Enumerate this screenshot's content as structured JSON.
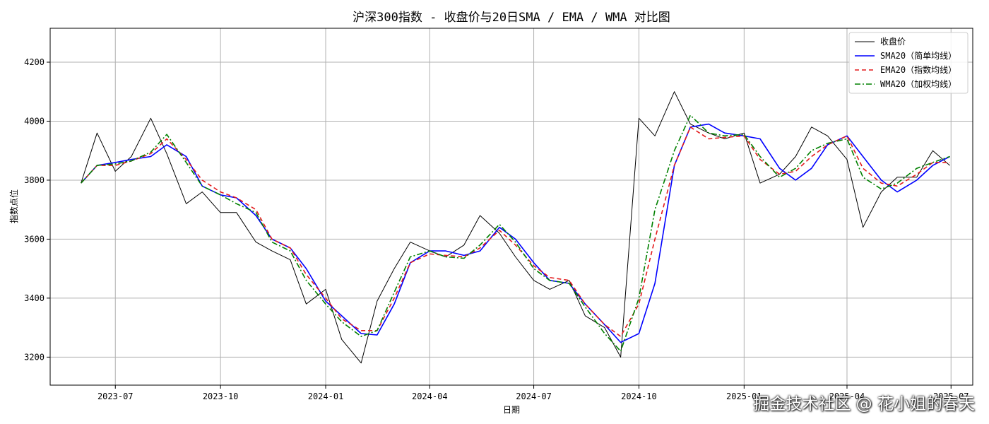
{
  "chart_data": {
    "type": "line",
    "title": "沪深300指数 - 收盘价与20日SMA / EMA / WMA 对比图",
    "xlabel": "日期",
    "ylabel": "指数点位",
    "x_ticks": [
      "2023-07",
      "2023-10",
      "2024-01",
      "2024-04",
      "2024-07",
      "2024-10",
      "2025-01",
      "2025-04",
      "2025-07"
    ],
    "xlim": [
      "2023-05-05",
      "2025-07-20"
    ],
    "ylim": [
      3105,
      4315
    ],
    "y_ticks": [
      3200,
      3400,
      3600,
      3800,
      4000,
      4200
    ],
    "grid": true,
    "legend_position": "top-right",
    "x": [
      "2023-06-01",
      "2023-06-15",
      "2023-07-01",
      "2023-07-15",
      "2023-08-01",
      "2023-08-15",
      "2023-09-01",
      "2023-09-15",
      "2023-10-01",
      "2023-10-15",
      "2023-11-01",
      "2023-11-15",
      "2023-12-01",
      "2023-12-15",
      "2024-01-01",
      "2024-01-15",
      "2024-02-01",
      "2024-02-15",
      "2024-03-01",
      "2024-03-15",
      "2024-04-01",
      "2024-04-15",
      "2024-05-01",
      "2024-05-15",
      "2024-06-01",
      "2024-06-15",
      "2024-07-01",
      "2024-07-15",
      "2024-08-01",
      "2024-08-15",
      "2024-09-01",
      "2024-09-15",
      "2024-10-01",
      "2024-10-15",
      "2024-11-01",
      "2024-11-15",
      "2024-12-01",
      "2024-12-15",
      "2025-01-01",
      "2025-01-15",
      "2025-02-01",
      "2025-02-15",
      "2025-03-01",
      "2025-03-15",
      "2025-04-01",
      "2025-04-15",
      "2025-05-01",
      "2025-05-15",
      "2025-06-01",
      "2025-06-15",
      "2025-06-30"
    ],
    "series": [
      {
        "name": "收盘价",
        "color": "#000000",
        "dash": "solid",
        "values": [
          3790,
          3960,
          3830,
          3880,
          4010,
          3890,
          3720,
          3760,
          3690,
          3690,
          3590,
          3560,
          3530,
          3380,
          3430,
          3260,
          3180,
          3390,
          3500,
          3590,
          3560,
          3540,
          3580,
          3680,
          3620,
          3540,
          3460,
          3430,
          3460,
          3340,
          3300,
          3200,
          4010,
          3950,
          4100,
          3990,
          3960,
          3940,
          3960,
          3790,
          3820,
          3880,
          3980,
          3950,
          3870,
          3640,
          3760,
          3810,
          3810,
          3900,
          3850
        ]
      },
      {
        "name": "SMA20（简单均线）",
        "color": "#0000ff",
        "dash": "solid",
        "values": [
          3790,
          3850,
          3860,
          3870,
          3880,
          3920,
          3880,
          3780,
          3750,
          3740,
          3680,
          3600,
          3570,
          3500,
          3390,
          3340,
          3280,
          3275,
          3380,
          3520,
          3560,
          3560,
          3545,
          3560,
          3640,
          3600,
          3520,
          3460,
          3450,
          3380,
          3310,
          3250,
          3280,
          3450,
          3850,
          3980,
          3990,
          3960,
          3950,
          3940,
          3840,
          3800,
          3840,
          3920,
          3950,
          3880,
          3800,
          3760,
          3800,
          3850,
          3880
        ]
      },
      {
        "name": "EMA20（指数均线）",
        "color": "#e31a1c",
        "dash": "dashed",
        "values": [
          3790,
          3850,
          3850,
          3865,
          3890,
          3940,
          3870,
          3800,
          3760,
          3740,
          3700,
          3600,
          3570,
          3480,
          3400,
          3330,
          3290,
          3290,
          3400,
          3520,
          3550,
          3545,
          3540,
          3570,
          3630,
          3580,
          3510,
          3470,
          3460,
          3380,
          3310,
          3270,
          3380,
          3600,
          3850,
          3980,
          3940,
          3945,
          3950,
          3870,
          3820,
          3830,
          3880,
          3920,
          3950,
          3840,
          3790,
          3780,
          3820,
          3860,
          3860
        ]
      },
      {
        "name": "WMA20（加权均线）",
        "color": "#008000",
        "dash": "dashdot",
        "values": [
          3790,
          3850,
          3855,
          3865,
          3895,
          3955,
          3860,
          3780,
          3750,
          3720,
          3690,
          3590,
          3560,
          3460,
          3380,
          3320,
          3270,
          3290,
          3420,
          3540,
          3560,
          3540,
          3535,
          3580,
          3650,
          3590,
          3500,
          3460,
          3450,
          3370,
          3280,
          3220,
          3400,
          3700,
          3900,
          4020,
          3960,
          3950,
          3955,
          3880,
          3810,
          3840,
          3900,
          3925,
          3940,
          3810,
          3770,
          3790,
          3840,
          3860,
          3880
        ]
      }
    ]
  },
  "watermark": "掘金技术社区 @ 花小姐的春天"
}
